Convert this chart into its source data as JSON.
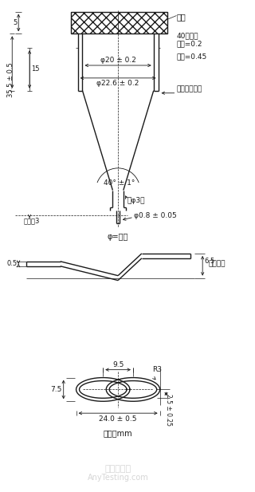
{
  "bg_color": "#ffffff",
  "line_color": "#1a1a1a",
  "annotations": {
    "filter_room": "滤室",
    "screen": "40目筛网\n线径=0.2",
    "pore": "孔径=0.45",
    "holder_notch": "片剂支架卡口",
    "phi_dia": "φ=直径",
    "phi20": "φ20 ± 0.2",
    "phi226": "φ22.6 ± 0.2",
    "angle": "40° ± 1°",
    "phi3": "（φ3）",
    "phi08": "φ0.8 ± 0.05",
    "no_less_3": "不小于3",
    "dim_355": "35.5 ± 0.5",
    "dim_15": "15",
    "dim_5": "5",
    "dim_95": "9.5",
    "dim_240": "24.0 ± 0.5",
    "dim_75": "7.5",
    "dim_25": "2.5 ± 0.25",
    "dim_65": "6.5",
    "dim_05": "0.5",
    "r3": "R3",
    "holder": "片剂支架",
    "unit": "单位：mm"
  }
}
